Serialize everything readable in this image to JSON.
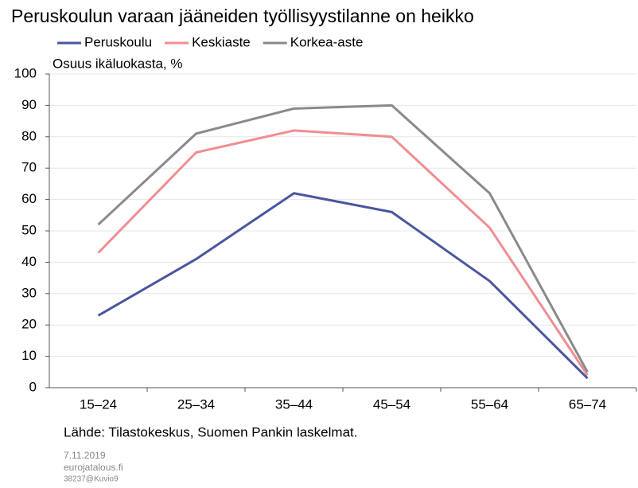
{
  "chart_data": {
    "type": "line",
    "title": "Peruskoulun varaan jääneiden työllisyystilanne on heikko",
    "y_label": "Osuus ikäluokasta, %",
    "categories": [
      "15–24",
      "25–34",
      "35–44",
      "45–54",
      "55–64",
      "65–74"
    ],
    "series": [
      {
        "name": "Peruskoulu",
        "color": "#4b559f",
        "values": [
          23,
          41,
          62,
          56,
          34,
          3
        ]
      },
      {
        "name": "Keskiaste",
        "color": "#ef8e92",
        "values": [
          43,
          75,
          82,
          80,
          51,
          4
        ]
      },
      {
        "name": "Korkea-aste",
        "color": "#8a8a8a",
        "values": [
          52,
          81,
          89,
          90,
          62,
          5
        ]
      }
    ],
    "ylim": [
      0,
      100
    ],
    "yticks": [
      0,
      10,
      20,
      30,
      40,
      50,
      60,
      70,
      80,
      90,
      100
    ],
    "grid": true,
    "source": "Lähde: Tilastokeskus, Suomen Pankin laskelmat.",
    "footer": [
      "7.11.2019",
      "eurojatalous.fi",
      "38237@Kuvio9"
    ]
  }
}
